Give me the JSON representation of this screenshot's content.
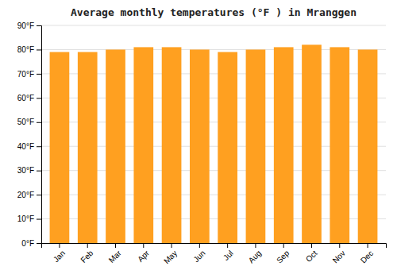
{
  "chart_data": {
    "type": "bar",
    "title": "Average monthly temperatures (°F ) in Mranggen",
    "categories": [
      "Jan",
      "Feb",
      "Mar",
      "Apr",
      "May",
      "Jun",
      "Jul",
      "Aug",
      "Sep",
      "Oct",
      "Nov",
      "Dec"
    ],
    "values": [
      79,
      79,
      80,
      81,
      81,
      80,
      79,
      80,
      81,
      82,
      81,
      80
    ],
    "color": "#FFA020",
    "ylim": [
      0,
      90
    ],
    "yticks": [
      {
        "value": 0,
        "label": "0°F"
      },
      {
        "value": 10,
        "label": "10°F"
      },
      {
        "value": 20,
        "label": "20°F"
      },
      {
        "value": 30,
        "label": "30°F"
      },
      {
        "value": 40,
        "label": "40°F"
      },
      {
        "value": 50,
        "label": "50°F"
      },
      {
        "value": 60,
        "label": "60°F"
      },
      {
        "value": 70,
        "label": "70°F"
      },
      {
        "value": 80,
        "label": "80°F"
      },
      {
        "value": 90,
        "label": "90°F"
      }
    ],
    "grid": true
  }
}
